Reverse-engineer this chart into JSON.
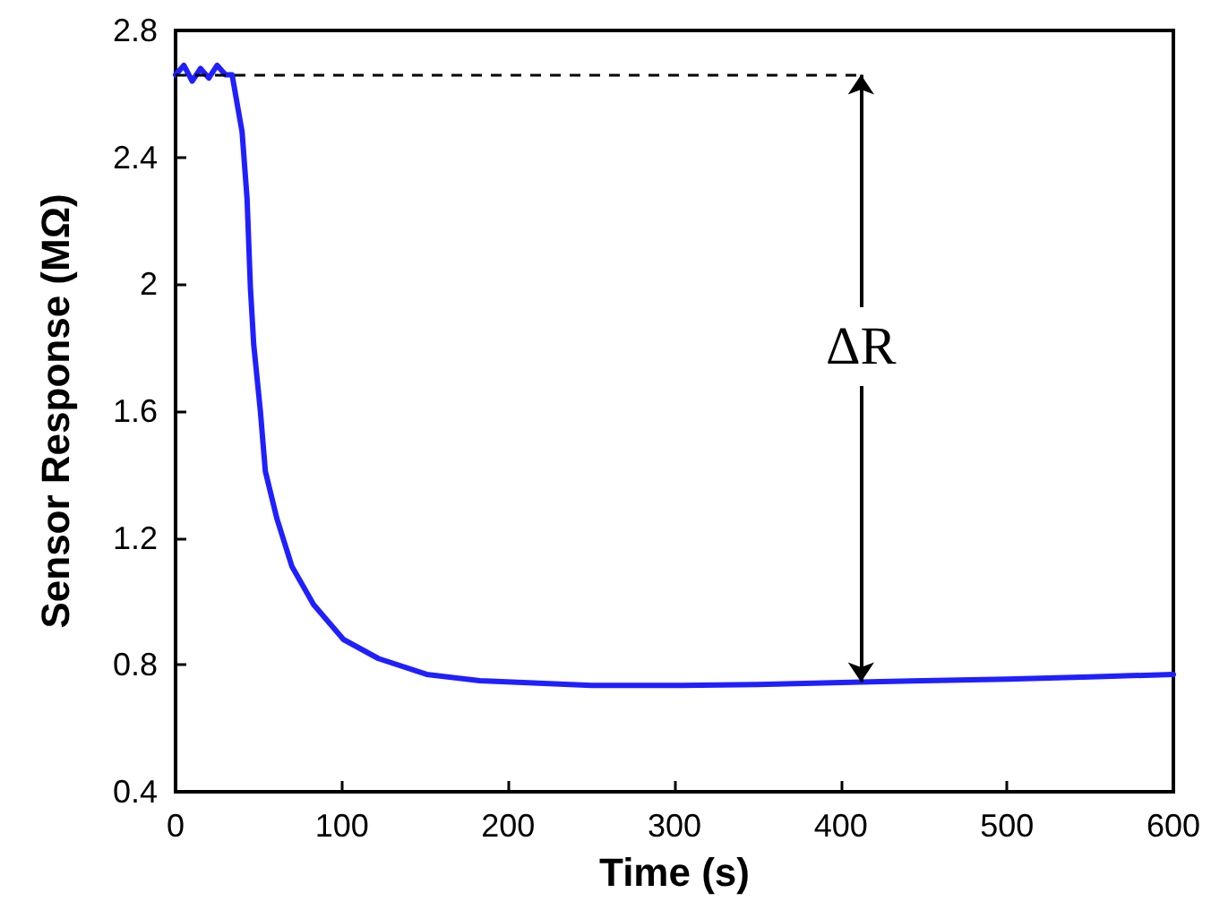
{
  "chart_data": {
    "type": "line",
    "xlabel": "Time (s)",
    "ylabel": "Sensor Response (MΩ)",
    "x": [
      0,
      5,
      10,
      15,
      20,
      25,
      30,
      34,
      40,
      43,
      45,
      47,
      51,
      54,
      61,
      70,
      83,
      101,
      122,
      151,
      183,
      212,
      250,
      300,
      350,
      412,
      450,
      500,
      550,
      600
    ],
    "series": [
      {
        "color": "#1f1fff",
        "values": [
          2.66,
          2.69,
          2.64,
          2.68,
          2.65,
          2.69,
          2.66,
          2.66,
          2.48,
          2.27,
          1.99,
          1.81,
          1.6,
          1.41,
          1.26,
          1.11,
          0.99,
          0.88,
          0.82,
          0.77,
          0.75,
          0.744,
          0.735,
          0.735,
          0.738,
          0.746,
          0.75,
          0.755,
          0.762,
          0.77
        ]
      }
    ],
    "xlim": [
      0,
      600
    ],
    "xticks": [
      0,
      100,
      200,
      300,
      400,
      500,
      600
    ],
    "ylim": [
      0.4,
      2.8
    ],
    "yticks": [
      0.4,
      0.8,
      1.2,
      1.6,
      2.0,
      2.4,
      2.8
    ],
    "annotations": [
      "ΔR"
    ],
    "grid": false,
    "marker": "none",
    "line_style": "solid"
  }
}
